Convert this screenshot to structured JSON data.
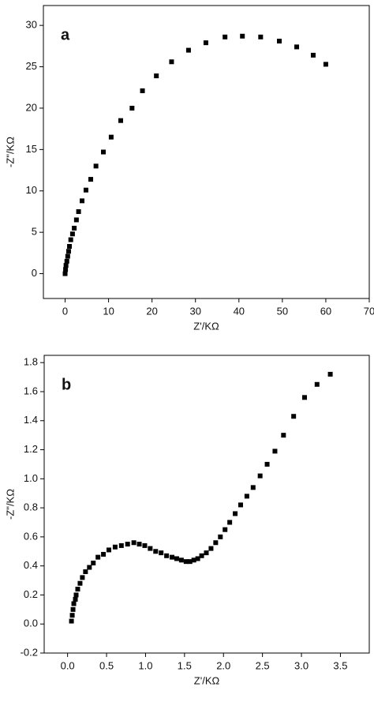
{
  "chart_data": [
    {
      "type": "scatter",
      "annotation": "a",
      "x_label": "Z'/KΩ",
      "y_label": "-Z\"/KΩ",
      "color": "#000000",
      "xlim": [
        -5,
        70
      ],
      "ylim": [
        -3,
        32.4
      ],
      "xticks": [
        0,
        10,
        20,
        30,
        40,
        50,
        60,
        70
      ],
      "yticks": [
        0,
        5,
        10,
        15,
        20,
        25,
        30
      ],
      "x": [
        0,
        0.1,
        0.2,
        0.4,
        0.6,
        0.8,
        1,
        1.3,
        1.7,
        2.1,
        2.6,
        3.1,
        3.9,
        4.8,
        5.9,
        7.1,
        8.8,
        10.6,
        12.8,
        15.4,
        17.8,
        21,
        24.5,
        28.4,
        32.4,
        36.8,
        40.8,
        45,
        49.3,
        53.3,
        57.1,
        60
      ],
      "values": [
        0,
        0.5,
        1,
        1.5,
        2.1,
        2.7,
        3.3,
        4.1,
        4.8,
        5.5,
        6.5,
        7.5,
        8.8,
        10.1,
        11.4,
        13,
        14.7,
        16.5,
        18.5,
        20,
        22.1,
        23.9,
        25.6,
        27,
        27.9,
        28.6,
        28.7,
        28.6,
        28.1,
        27.4,
        26.4,
        25.3
      ]
    },
    {
      "type": "scatter",
      "annotation": "b",
      "x_label": "Z'/KΩ",
      "y_label": "-Z\"/KΩ",
      "color": "#000000",
      "xlim": [
        -0.3,
        3.87
      ],
      "ylim": [
        -0.2,
        1.85
      ],
      "xticks": [
        {
          "value": 0,
          "label": "0.0"
        },
        0.5,
        {
          "value": 1,
          "label": "1.0"
        },
        1.5,
        {
          "value": 2,
          "label": "2.0"
        },
        2.5,
        {
          "value": 3,
          "label": "3.0"
        },
        3.5
      ],
      "yticks": [
        -0.2,
        {
          "value": 0,
          "label": "0.0"
        },
        0.2,
        0.4,
        0.6,
        0.8,
        {
          "value": 1,
          "label": "1.0"
        },
        1.2,
        1.4,
        1.6,
        1.8
      ],
      "x": [
        0.05,
        0.06,
        0.07,
        0.08,
        0.1,
        0.11,
        0.13,
        0.16,
        0.19,
        0.23,
        0.28,
        0.33,
        0.39,
        0.46,
        0.53,
        0.61,
        0.69,
        0.77,
        0.85,
        0.92,
        0.99,
        1.06,
        1.13,
        1.2,
        1.27,
        1.34,
        1.4,
        1.46,
        1.52,
        1.57,
        1.62,
        1.67,
        1.72,
        1.78,
        1.84,
        1.9,
        1.96,
        2.02,
        2.08,
        2.15,
        2.22,
        2.3,
        2.38,
        2.47,
        2.56,
        2.66,
        2.77,
        2.9,
        3.04,
        3.2,
        3.37
      ],
      "values": [
        0.02,
        0.06,
        0.1,
        0.14,
        0.17,
        0.2,
        0.24,
        0.28,
        0.32,
        0.36,
        0.39,
        0.42,
        0.46,
        0.48,
        0.51,
        0.53,
        0.54,
        0.55,
        0.56,
        0.55,
        0.54,
        0.52,
        0.5,
        0.49,
        0.47,
        0.46,
        0.45,
        0.44,
        0.43,
        0.43,
        0.44,
        0.45,
        0.47,
        0.49,
        0.52,
        0.56,
        0.6,
        0.65,
        0.7,
        0.76,
        0.82,
        0.88,
        0.94,
        1.02,
        1.1,
        1.19,
        1.3,
        1.43,
        1.56,
        1.65,
        1.72
      ]
    }
  ]
}
